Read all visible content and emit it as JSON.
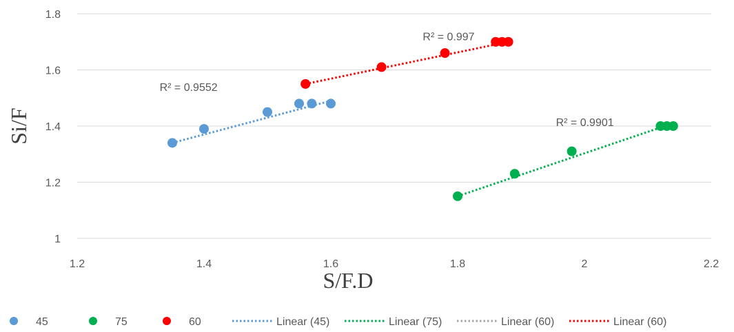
{
  "chart_data": {
    "type": "scatter",
    "xlabel": "S/F.D",
    "ylabel": "Si/F",
    "xlim": [
      1.2,
      2.2
    ],
    "ylim": [
      1,
      1.8
    ],
    "x_ticks": [
      "1.2",
      "1.4",
      "1.6",
      "1.8",
      "2",
      "2.2"
    ],
    "y_ticks": [
      "1",
      "1.2",
      "1.4",
      "1.6",
      "1.8"
    ],
    "grid": "horizontal",
    "legend_position": "bottom",
    "series": [
      {
        "name": "45",
        "color": "#5B9BD5",
        "x": [
          1.35,
          1.4,
          1.5,
          1.55,
          1.57,
          1.6
        ],
        "y": [
          1.34,
          1.39,
          1.45,
          1.48,
          1.48,
          1.48
        ],
        "trendline": {
          "name": "Linear (45)",
          "color": "#5B9BD5",
          "x": [
            1.35,
            1.6
          ],
          "y": [
            1.34,
            1.49
          ],
          "r2_label": "R² = 0.9552"
        }
      },
      {
        "name": "75",
        "color": "#00B050",
        "x": [
          1.8,
          1.89,
          1.98,
          2.12,
          2.13,
          2.14
        ],
        "y": [
          1.15,
          1.23,
          1.31,
          1.4,
          1.4,
          1.4
        ],
        "trendline": {
          "name": "Linear (75)",
          "color": "#00B050",
          "x": [
            1.8,
            2.14
          ],
          "y": [
            1.15,
            1.41
          ],
          "r2_label": "R² = 0.9901"
        }
      },
      {
        "name": "60",
        "color": "#FF0000",
        "x": [
          1.56,
          1.68,
          1.78,
          1.86,
          1.87,
          1.88
        ],
        "y": [
          1.55,
          1.61,
          1.66,
          1.7,
          1.7,
          1.7
        ],
        "trendline": {
          "name": "Linear (60)",
          "color": "#FF0000",
          "x": [
            1.56,
            1.88
          ],
          "y": [
            1.55,
            1.7
          ],
          "r2_label": "R² = 0.997"
        }
      }
    ],
    "legend": [
      {
        "kind": "marker",
        "label": "45",
        "color": "#5B9BD5"
      },
      {
        "kind": "marker",
        "label": "75",
        "color": "#00B050"
      },
      {
        "kind": "marker",
        "label": "60",
        "color": "#FF0000"
      },
      {
        "kind": "line",
        "label": "Linear (45)",
        "color": "#5B9BD5"
      },
      {
        "kind": "line",
        "label": "Linear (75)",
        "color": "#00B050"
      },
      {
        "kind": "line",
        "label": "Linear (60)",
        "color": "#A6A6A6"
      },
      {
        "kind": "line",
        "label": "Linear (60)",
        "color": "#FF0000"
      }
    ]
  }
}
